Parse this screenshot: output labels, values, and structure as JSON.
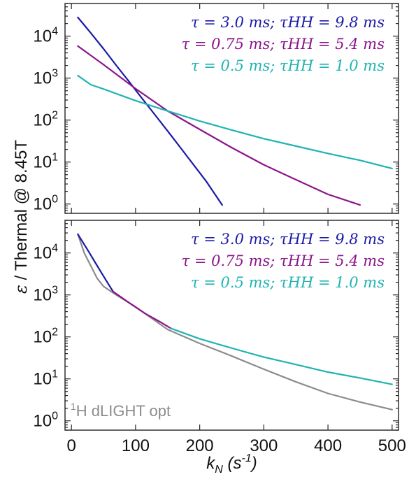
{
  "chart_data": [
    {
      "type": "line",
      "panel": "top",
      "title": "",
      "xlabel": "k_N (s^-1)",
      "ylabel": "ε / Thermal @ 8.45T",
      "yscale": "log",
      "xlim": [
        -10,
        510
      ],
      "ylim": [
        0.6,
        60000
      ],
      "x_ticks": [
        0,
        100,
        200,
        300,
        400,
        500
      ],
      "y_ticks": [
        1,
        10,
        100,
        1000,
        10000
      ],
      "grid": false,
      "legend_position": "top-right",
      "series": [
        {
          "name": "τ = 3.0 ms; τHH = 9.8 ms",
          "color": "#1a1aa8",
          "x": [
            10,
            30,
            50,
            70,
            90,
            110,
            130,
            150,
            170,
            190,
            210,
            235
          ],
          "y": [
            28000,
            12000,
            5000,
            2000,
            820,
            330,
            135,
            55,
            22,
            8.8,
            3.5,
            0.95
          ]
        },
        {
          "name": "τ = 0.75 ms; τHH = 5.4 ms",
          "color": "#8b158b",
          "x": [
            10,
            50,
            100,
            150,
            200,
            250,
            300,
            350,
            400,
            450
          ],
          "y": [
            5800,
            2100,
            560,
            165,
            60,
            22,
            8.6,
            3.8,
            1.7,
            0.95
          ]
        },
        {
          "name": "τ = 0.5 ms; τHH = 1.0 ms",
          "color": "#1fb3b3",
          "x": [
            10,
            30,
            50,
            100,
            150,
            200,
            250,
            300,
            350,
            400,
            450,
            500
          ],
          "y": [
            1150,
            700,
            550,
            290,
            165,
            95,
            58,
            36,
            24,
            16,
            11,
            7
          ]
        }
      ]
    },
    {
      "type": "line",
      "panel": "bottom",
      "title": "",
      "xlabel": "k_N (s^-1)",
      "ylabel": "ε / Thermal @ 8.45T",
      "yscale": "log",
      "xlim": [
        -10,
        510
      ],
      "ylim": [
        0.6,
        60000
      ],
      "x_ticks": [
        0,
        100,
        200,
        300,
        400,
        500
      ],
      "y_ticks": [
        1,
        10,
        100,
        1000,
        10000
      ],
      "grid": false,
      "legend_position": "top-right",
      "annotation": "1H dLIGHT opt",
      "series": [
        {
          "name": "",
          "color": "#8c8c8c",
          "x": [
            10,
            20,
            30,
            40,
            50,
            70,
            100,
            150,
            200,
            250,
            300,
            350,
            400,
            450,
            500
          ],
          "y": [
            28000,
            10000,
            5000,
            2500,
            1600,
            1000,
            520,
            150,
            70,
            35,
            17,
            8.5,
            4.5,
            2.8,
            1.85
          ]
        },
        {
          "name": "τ = 3.0 ms; τHH = 9.8 ms",
          "color": "#1a1aa8",
          "x": [
            10,
            25,
            40,
            55,
            65
          ],
          "y": [
            28000,
            12000,
            5000,
            2100,
            1200
          ]
        },
        {
          "name": "τ = 0.75 ms; τHH = 5.4 ms",
          "color": "#8b158b",
          "x": [
            65,
            90,
            115,
            140,
            155
          ],
          "y": [
            1200,
            650,
            360,
            220,
            160
          ]
        },
        {
          "name": "τ = 0.5 ms; τHH = 1.0 ms",
          "color": "#1fb3b3",
          "x": [
            155,
            200,
            250,
            300,
            350,
            400,
            450,
            500
          ],
          "y": [
            160,
            90,
            54,
            33,
            22,
            14.5,
            10.5,
            7.4
          ]
        }
      ]
    }
  ]
}
